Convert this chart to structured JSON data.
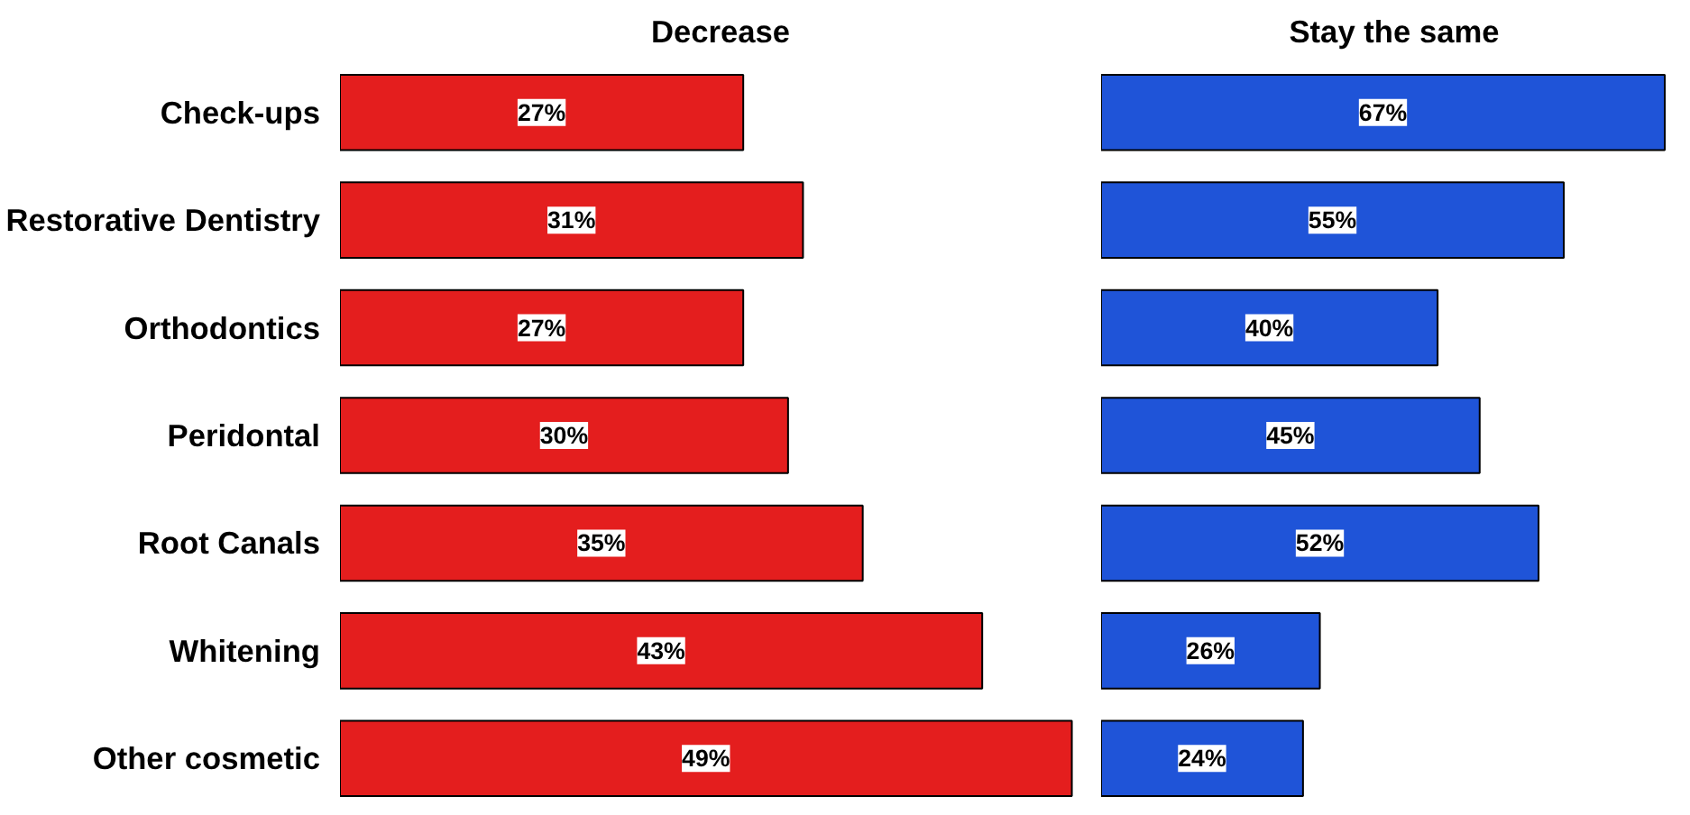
{
  "chart_data": [
    {
      "type": "bar",
      "orientation": "horizontal",
      "title": "Decrease",
      "categories": [
        "Check-ups",
        "Restorative Dentistry",
        "Orthodontics",
        "Peridontal",
        "Root Canals",
        "Whitening",
        "Other cosmetic"
      ],
      "values": [
        27,
        31,
        27,
        30,
        35,
        43,
        49
      ],
      "value_labels": [
        "27%",
        "31%",
        "27%",
        "30%",
        "35%",
        "43%",
        "49%"
      ],
      "color": "#e41e1e",
      "tick_labels": "y"
    },
    {
      "type": "bar",
      "orientation": "horizontal",
      "title": "Stay the same",
      "categories": [
        null,
        null,
        null,
        null,
        null,
        null,
        null
      ],
      "values": [
        67,
        55,
        40,
        45,
        52,
        26,
        24
      ],
      "value_labels": [
        "67%",
        "55%",
        "40%",
        "45%",
        "52%",
        "26%",
        "24%"
      ],
      "color": "#1f54d8",
      "tick_labels": false
    }
  ]
}
